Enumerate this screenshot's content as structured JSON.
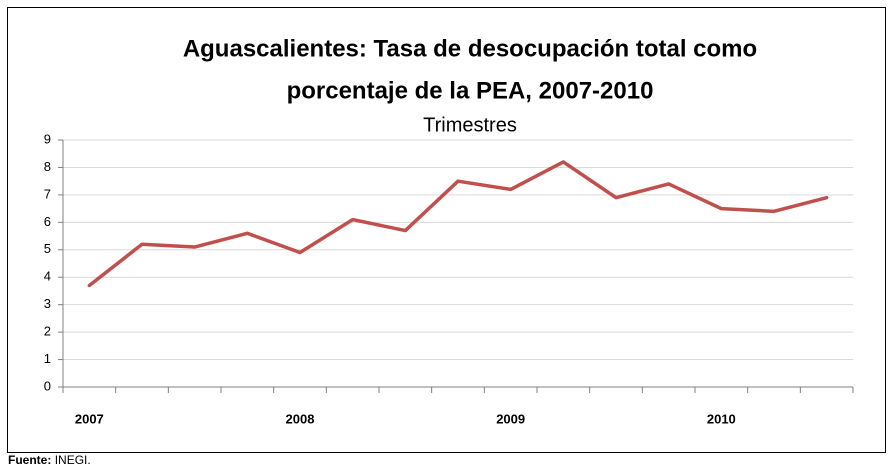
{
  "chart_data": {
    "type": "line",
    "title": [
      "Aguascalientes: Tasa de desocupación total como",
      "porcentaje de la PEA, 2007-2010"
    ],
    "subtitle": "Trimestres",
    "categories": [
      "2007",
      null,
      null,
      null,
      "2008",
      null,
      null,
      null,
      "2009",
      null,
      null,
      null,
      "2010",
      null,
      null
    ],
    "series": [
      {
        "color": "#c0504d",
        "values": [
          3.7,
          5.2,
          5.1,
          5.6,
          4.9,
          6.1,
          5.7,
          7.5,
          7.2,
          8.2,
          6.9,
          7.4,
          6.5,
          6.4,
          6.9
        ]
      }
    ],
    "ylim": [
      0,
      9
    ],
    "yticks": [
      0,
      1,
      2,
      3,
      4,
      5,
      6,
      7,
      8,
      9
    ],
    "grid": true,
    "source": {
      "label": "Fuente:",
      "text": "INEGI."
    }
  }
}
